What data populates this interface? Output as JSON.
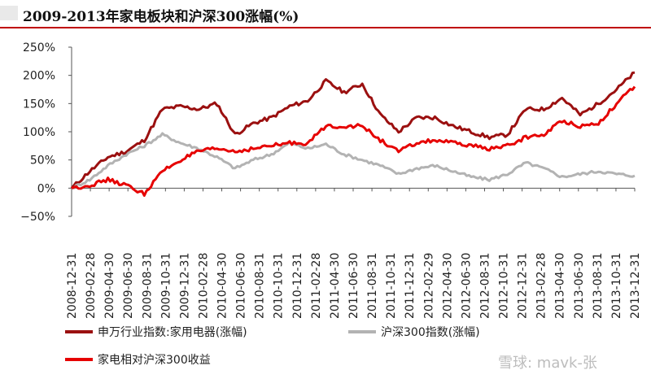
{
  "title": "2009-2013年家电板块和沪深300涨幅(%)",
  "watermark": "雪球: mavk-张",
  "colors": {
    "appliance": "#9b1010",
    "csi300": "#b3b3b3",
    "relative": "#e60000",
    "title_rule": "#c00000"
  },
  "chart_data": {
    "type": "line",
    "title": "2009-2013年家电板块和沪深300涨幅(%)",
    "xlabel": "",
    "ylabel": "",
    "ylim": [
      -50,
      250
    ],
    "yticks": [
      -50,
      0,
      50,
      100,
      150,
      200,
      250
    ],
    "ytick_labels": [
      "−50%",
      "0%",
      "50%",
      "100%",
      "150%",
      "200%",
      "250%"
    ],
    "xticks": [
      "2008-12-31",
      "2009-02-28",
      "2009-04-30",
      "2009-06-30",
      "2009-08-31",
      "2009-10-31",
      "2009-12-31",
      "2010-02-28",
      "2010-04-30",
      "2010-06-30",
      "2010-08-31",
      "2010-10-31",
      "2010-12-31",
      "2011-02-28",
      "2011-04-30",
      "2011-06-30",
      "2011-08-31",
      "2011-10-31",
      "2011-12-31",
      "2012-02-29",
      "2012-04-30",
      "2012-06-30",
      "2012-08-31",
      "2012-10-31",
      "2012-12-31",
      "2013-02-28",
      "2013-04-30",
      "2013-06-30",
      "2013-08-31",
      "2013-10-31",
      "2013-12-31"
    ],
    "grid": false,
    "legend_position": "bottom",
    "series": [
      {
        "name": "申万行业指数:家用电器(涨幅)",
        "color": "#9b1010",
        "values": [
          0,
          30,
          55,
          65,
          85,
          140,
          145,
          140,
          150,
          95,
          115,
          125,
          145,
          155,
          190,
          170,
          185,
          130,
          100,
          125,
          125,
          110,
          100,
          90,
          95,
          140,
          140,
          160,
          130,
          150,
          175,
          205
        ]
      },
      {
        "name": "沪深300指数(涨幅)",
        "color": "#b3b3b3",
        "values": [
          0,
          15,
          40,
          60,
          75,
          95,
          80,
          70,
          55,
          35,
          50,
          60,
          80,
          70,
          78,
          60,
          50,
          40,
          25,
          35,
          40,
          30,
          20,
          15,
          25,
          45,
          35,
          20,
          25,
          30,
          25,
          22
        ]
      },
      {
        "name": "家电相对沪深300收益",
        "color": "#e60000",
        "values": [
          0,
          5,
          15,
          5,
          -10,
          30,
          50,
          65,
          70,
          65,
          70,
          75,
          80,
          80,
          110,
          110,
          110,
          85,
          65,
          80,
          85,
          80,
          75,
          70,
          75,
          90,
          95,
          120,
          110,
          115,
          150,
          180
        ]
      }
    ]
  }
}
